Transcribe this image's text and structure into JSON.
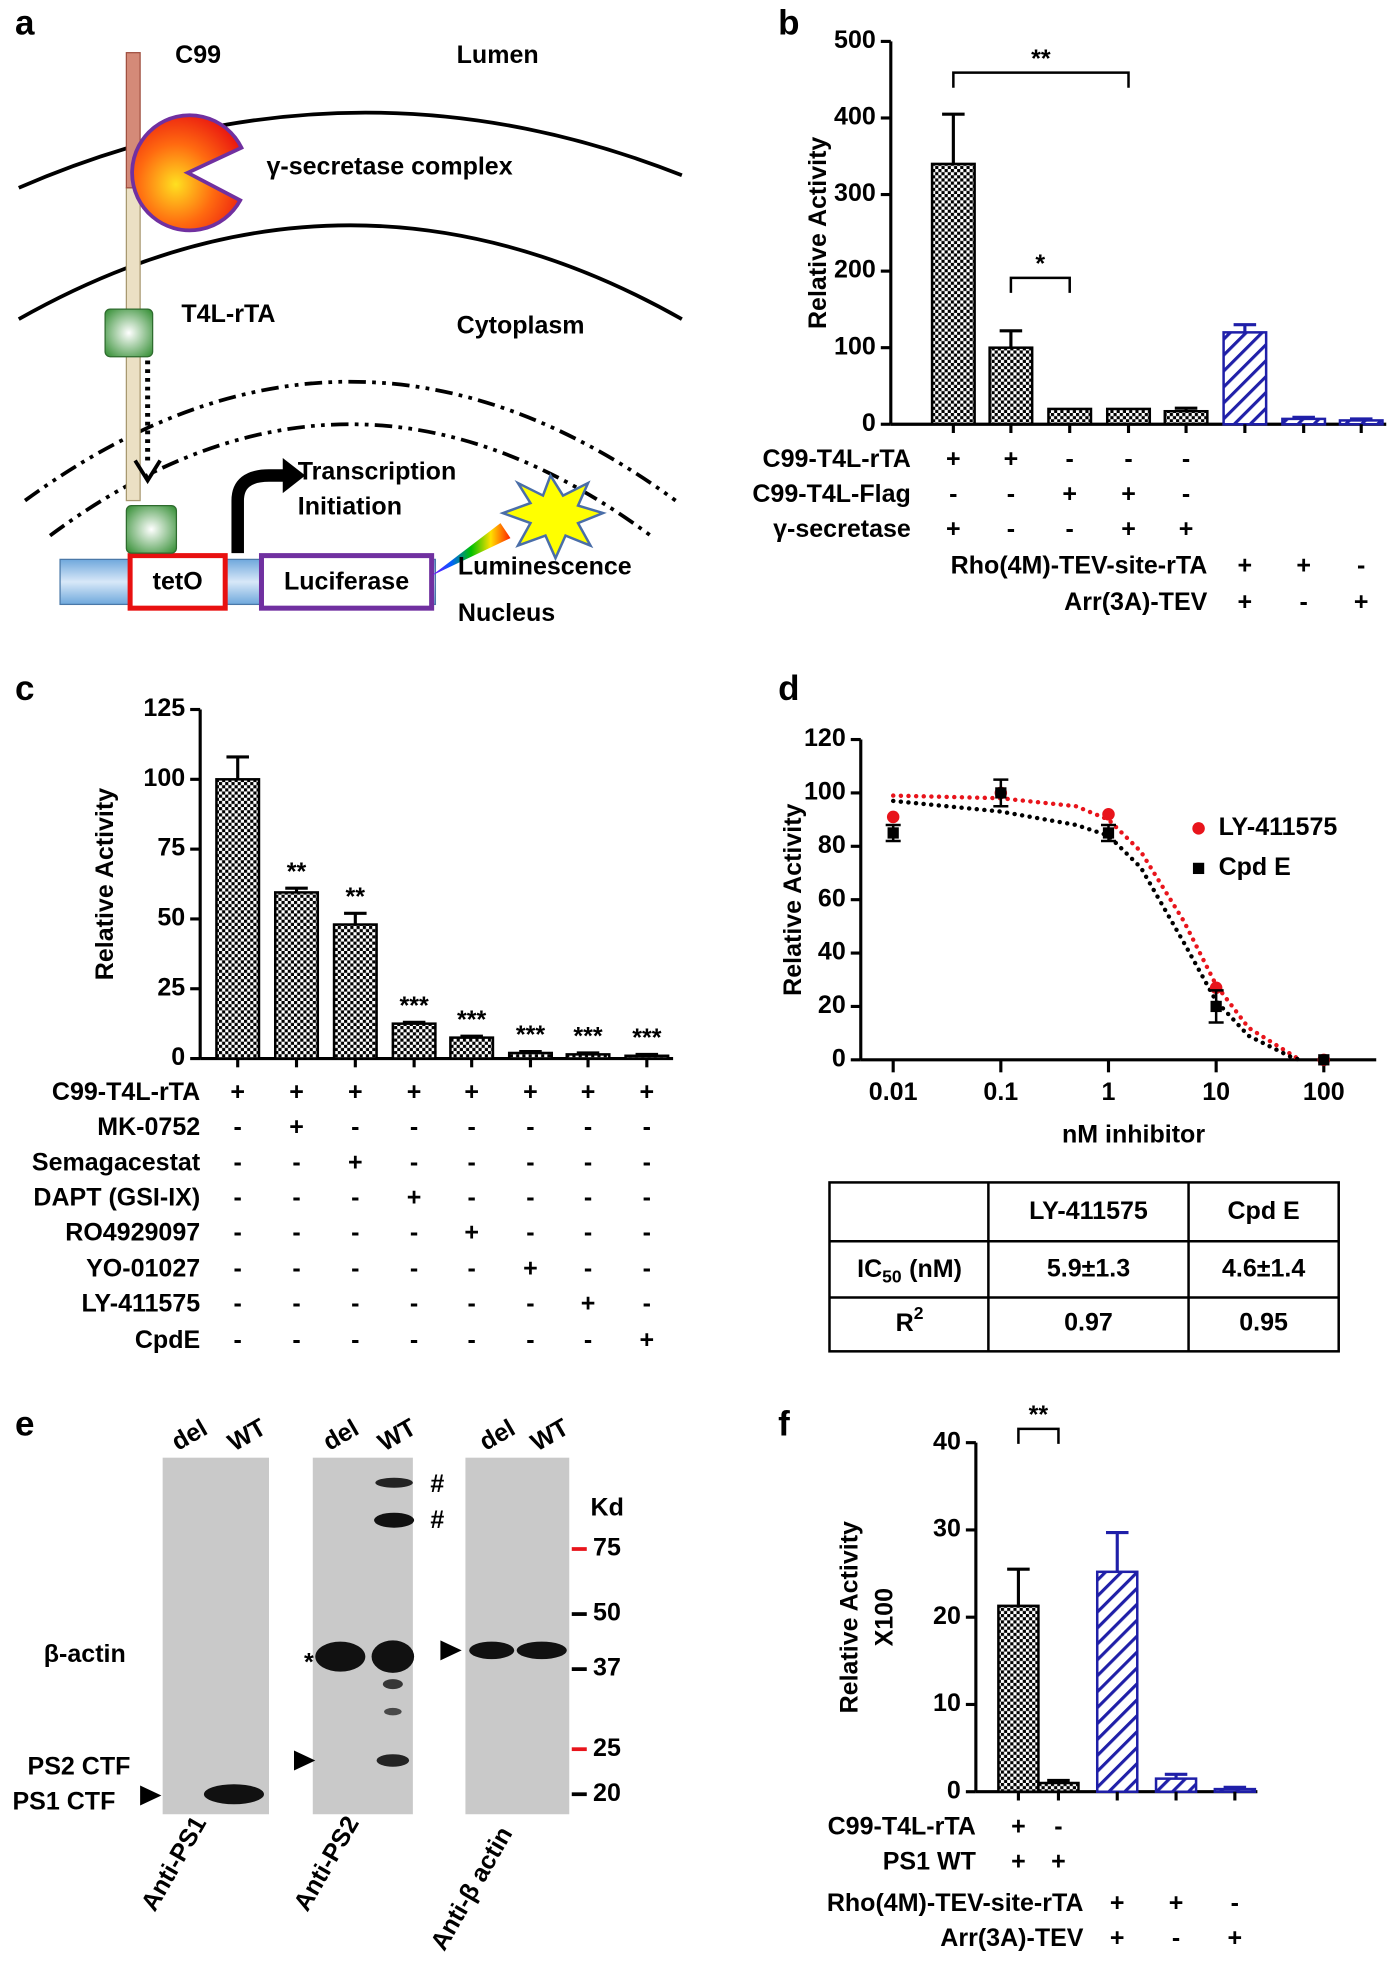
{
  "panel_labels": [
    "a",
    "b",
    "c",
    "d",
    "e",
    "f"
  ],
  "diagram": {
    "c99": "C99",
    "lumen": "Lumen",
    "gamma": "γ-secretase complex",
    "t4l": "T4L-rTA",
    "cytoplasm": "Cytoplasm",
    "transcription": [
      "Transcription",
      "Initiation"
    ],
    "teto": "tetO",
    "luciferase": "Luciferase",
    "luminescence": "Luminescence",
    "nucleus": "Nucleus"
  },
  "chart_data": [
    {
      "type": "bar",
      "ylabel": "Relative Activity",
      "ylim": [
        0,
        500
      ],
      "yticks": [
        0,
        100,
        200,
        300,
        400,
        500
      ],
      "values": [
        340,
        100,
        20,
        20,
        17,
        120,
        7,
        5
      ],
      "errors": [
        65,
        22,
        0,
        0,
        4,
        10,
        2,
        2
      ],
      "colors": [
        "#000000",
        "#000000",
        "#000000",
        "#000000",
        "#000000",
        "#1f1fa8",
        "#1f1fa8",
        "#1f1fa8"
      ],
      "patterns": [
        "checker",
        "checker",
        "checker",
        "checker",
        "checker",
        "hatch",
        "hatch",
        "hatch"
      ],
      "annotations": [
        "**",
        "*"
      ],
      "conditions": [
        {
          "name": "C99-T4L-rTA",
          "signs": [
            "+",
            "+",
            "-",
            "-",
            "-"
          ]
        },
        {
          "name": "C99-T4L-Flag",
          "signs": [
            "-",
            "-",
            "+",
            "+",
            "-"
          ]
        },
        {
          "name": "γ-secretase",
          "signs": [
            "+",
            "-",
            "-",
            "+",
            "+"
          ]
        },
        {
          "name": "Rho(4M)-TEV-site-rTA",
          "signs": [
            "+",
            "+",
            "-"
          ]
        },
        {
          "name": "Arr(3A)-TEV",
          "signs": [
            "+",
            "-",
            "+"
          ]
        }
      ]
    },
    {
      "type": "bar",
      "ylabel": "Relative Activity",
      "ylim": [
        0,
        125
      ],
      "yticks": [
        0,
        25,
        50,
        75,
        100,
        125
      ],
      "values": [
        100,
        59.5,
        48,
        12.5,
        7.5,
        2,
        1.5,
        1
      ],
      "errors": [
        8,
        1.5,
        4,
        0.5,
        0.5,
        0.5,
        0.5,
        0.5
      ],
      "colors": [
        "#000000",
        "#000000",
        "#000000",
        "#000000",
        "#000000",
        "#000000",
        "#000000",
        "#000000"
      ],
      "patterns": [
        "checker",
        "checker",
        "checker",
        "checker",
        "checker",
        "checker",
        "checker",
        "checker"
      ],
      "markers": [
        null,
        "**",
        "**",
        "***",
        "***",
        "***",
        "***",
        "***"
      ],
      "conditions": [
        {
          "name": "C99-T4L-rTA",
          "signs": [
            "+",
            "+",
            "+",
            "+",
            "+",
            "+",
            "+",
            "+"
          ]
        },
        {
          "name": "MK-0752",
          "signs": [
            "-",
            "+",
            "-",
            "-",
            "-",
            "-",
            "-",
            "-"
          ]
        },
        {
          "name": "Semagacestat",
          "signs": [
            "-",
            "-",
            "+",
            "-",
            "-",
            "-",
            "-",
            "-"
          ]
        },
        {
          "name": "DAPT (GSI-IX)",
          "signs": [
            "-",
            "-",
            "-",
            "+",
            "-",
            "-",
            "-",
            "-"
          ]
        },
        {
          "name": "RO4929097",
          "signs": [
            "-",
            "-",
            "-",
            "-",
            "+",
            "-",
            "-",
            "-"
          ]
        },
        {
          "name": "YO-01027",
          "signs": [
            "-",
            "-",
            "-",
            "-",
            "-",
            "+",
            "-",
            "-"
          ]
        },
        {
          "name": "LY-411575",
          "signs": [
            "-",
            "-",
            "-",
            "-",
            "-",
            "-",
            "+",
            "-"
          ]
        },
        {
          "name": "CpdE",
          "signs": [
            "-",
            "-",
            "-",
            "-",
            "-",
            "-",
            "-",
            "+"
          ]
        }
      ]
    },
    {
      "type": "scatter",
      "xlabel": "nM inhibitor",
      "ylabel": "Relative Activity",
      "xscale": "log",
      "xlim": [
        0.005,
        200
      ],
      "xticks": [
        0.01,
        0.1,
        1,
        10,
        100
      ],
      "ylim": [
        0,
        120
      ],
      "yticks": [
        0,
        20,
        40,
        60,
        80,
        100,
        120
      ],
      "legend": "upper right",
      "series": [
        {
          "name": "LY-411575",
          "color": "#e8141b",
          "marker": "circle",
          "x": [
            0.01,
            0.1,
            1,
            10,
            100
          ],
          "values": [
            91,
            100,
            92,
            27,
            0
          ],
          "curve": {
            "x": [
              0.01,
              0.1,
              0.5,
              1,
              2,
              5,
              10,
              20,
              50,
              60
            ],
            "values": [
              99,
              98,
              95,
              90,
              78,
              52,
              28,
              12,
              2,
              0
            ]
          }
        },
        {
          "name": "Cpd E",
          "color": "#000000",
          "marker": "square",
          "x": [
            0.01,
            0.1,
            1,
            10,
            100
          ],
          "values": [
            85,
            100,
            85,
            20,
            0
          ],
          "errors": [
            3,
            5,
            3,
            6,
            0
          ],
          "curve": {
            "x": [
              0.01,
              0.1,
              0.5,
              1,
              2,
              5,
              10,
              20,
              50,
              60
            ],
            "values": [
              97,
              93,
              88,
              84,
              72,
              44,
              22,
              9,
              1,
              0
            ]
          }
        }
      ]
    },
    {
      "type": "bar",
      "ylabel": [
        "Relative Activity",
        "X100"
      ],
      "ylim": [
        0,
        40
      ],
      "yticks": [
        0,
        10,
        20,
        30,
        40
      ],
      "values": [
        21.3,
        1,
        25.2,
        1.5,
        0.3
      ],
      "errors": [
        4.2,
        0.3,
        4.5,
        0.5,
        0.2
      ],
      "colors": [
        "#000000",
        "#000000",
        "#1f1fa8",
        "#1f1fa8",
        "#1f1fa8"
      ],
      "patterns": [
        "checker",
        "checker",
        "hatch",
        "hatch",
        "hatch"
      ],
      "annotations": [
        "**"
      ],
      "conditions": [
        {
          "name": "C99-T4L-rTA",
          "signs": [
            "+",
            "-"
          ]
        },
        {
          "name": "PS1 WT",
          "signs": [
            "+",
            "+"
          ]
        },
        {
          "name": "Rho(4M)-TEV-site-rTA",
          "signs": [
            "+",
            "+",
            "-"
          ]
        },
        {
          "name": "Arr(3A)-TEV",
          "signs": [
            "+",
            "-",
            "+"
          ]
        }
      ]
    }
  ],
  "table": {
    "columns": [
      "LY-411575",
      "Cpd E"
    ],
    "rows": [
      {
        "label": "IC",
        "sub": "50",
        "unit": "(nM)",
        "values": [
          "5.9±1.3",
          "4.6±1.4"
        ]
      },
      {
        "label": "R",
        "sup": "2",
        "values": [
          0.97,
          0.95
        ]
      }
    ]
  },
  "blot": {
    "lanes": [
      [
        "del",
        "WT"
      ],
      [
        "del",
        "WT"
      ],
      [
        "del",
        "WT"
      ]
    ],
    "antibodies": [
      "Anti-PS1",
      "Anti-PS2",
      "Anti-β actin"
    ],
    "band_labels": [
      "β-actin",
      "PS2 CTF",
      "PS1 CTF"
    ],
    "symbols": [
      "#",
      "#",
      "*"
    ],
    "marker_unit": "Kd",
    "markers": [
      {
        "value": 75,
        "color": "#e8141b"
      },
      {
        "value": 50,
        "color": "#000000"
      },
      {
        "value": 37,
        "color": "#000000"
      },
      {
        "value": 25,
        "color": "#e8141b"
      },
      {
        "value": 20,
        "color": "#000000"
      }
    ]
  }
}
